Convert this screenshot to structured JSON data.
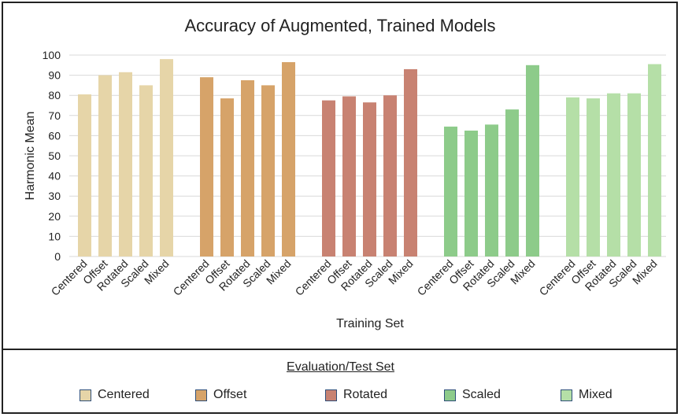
{
  "chart_data": {
    "type": "bar",
    "title": "Accuracy of Augmented, Trained Models",
    "xlabel": "Training Set",
    "ylabel": "Harmonic Mean",
    "ylim": [
      0,
      100
    ],
    "yticks": [
      0,
      10,
      20,
      30,
      40,
      50,
      60,
      70,
      80,
      90,
      100
    ],
    "grid": true,
    "groups": [
      {
        "color": "#e6d5a8",
        "categories": [
          "Centered",
          "Offset",
          "Rotated",
          "Scaled",
          "Mixed"
        ],
        "values": [
          80.5,
          90,
          91.5,
          85,
          98
        ]
      },
      {
        "color": "#d6a369",
        "categories": [
          "Centered",
          "Offset",
          "Rotated",
          "Scaled",
          "Mixed"
        ],
        "values": [
          89,
          78.5,
          87.5,
          85,
          96.5
        ]
      },
      {
        "color": "#c88272",
        "categories": [
          "Centered",
          "Offset",
          "Rotated",
          "Scaled",
          "Mixed"
        ],
        "values": [
          77.5,
          79.5,
          76.5,
          80,
          93
        ]
      },
      {
        "color": "#8dcb8a",
        "categories": [
          "Centered",
          "Offset",
          "Rotated",
          "Scaled",
          "Mixed"
        ],
        "values": [
          64.5,
          62.5,
          65.5,
          73,
          95
        ]
      },
      {
        "color": "#b5dfa7",
        "categories": [
          "Centered",
          "Offset",
          "Rotated",
          "Scaled",
          "Mixed"
        ],
        "values": [
          79,
          78.5,
          81,
          81,
          95.5
        ]
      }
    ]
  },
  "legend": {
    "title": "Evaluation/Test Set",
    "items": [
      {
        "label": "Centered",
        "color": "#e6d5a8"
      },
      {
        "label": "Offset",
        "color": "#d6a369"
      },
      {
        "label": "Rotated",
        "color": "#c88272"
      },
      {
        "label": "Scaled",
        "color": "#8dcb8a"
      },
      {
        "label": "Mixed",
        "color": "#b5dfa7"
      }
    ]
  }
}
